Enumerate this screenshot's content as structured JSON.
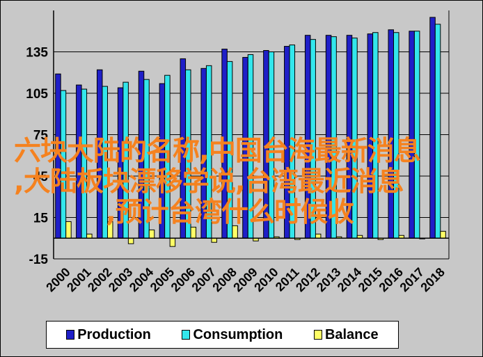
{
  "chart_data": {
    "type": "bar",
    "title": "",
    "xlabel": "",
    "ylabel": "",
    "ylim": [
      -15,
      165
    ],
    "yticks": [
      -15,
      15,
      45,
      75,
      105,
      135
    ],
    "grid": true,
    "legend_position": "bottom",
    "categories": [
      "2000",
      "2001",
      "2002",
      "2003",
      "2004",
      "2005",
      "2006",
      "2007",
      "2008",
      "2009",
      "2010",
      "2011",
      "2012",
      "2013",
      "2014",
      "2015",
      "2016",
      "2017",
      "2018"
    ],
    "series": [
      {
        "name": "Production",
        "color": "#1f1fc8",
        "values": [
          119,
          111,
          122,
          109,
          121,
          112,
          130,
          123,
          137,
          131,
          136,
          139,
          147,
          147,
          147,
          148,
          151,
          150,
          160
        ]
      },
      {
        "name": "Consumption",
        "color": "#33e6ec",
        "values": [
          107,
          108,
          110,
          113,
          115,
          118,
          122,
          125,
          128,
          133,
          135,
          140,
          144,
          146,
          145,
          149,
          149,
          150,
          155
        ]
      },
      {
        "name": "Balance",
        "color": "#ffff66",
        "values": [
          12,
          3,
          12,
          -4,
          6,
          -6,
          8,
          -3,
          9,
          -2,
          1,
          -1,
          3,
          1,
          2,
          -1,
          2,
          0,
          5
        ]
      }
    ]
  },
  "legend": {
    "items": [
      {
        "label": "Production",
        "color": "#1f1fc8"
      },
      {
        "label": "Consumption",
        "color": "#33e6ec"
      },
      {
        "label": "Balance",
        "color": "#ffff66"
      }
    ]
  },
  "watermark": {
    "line1": "六块大陆的名称,中国台海最新消息",
    "line2": ",大陆板块漂移学说,台湾最近消息",
    "line3": ",预计台湾什么时候收"
  }
}
